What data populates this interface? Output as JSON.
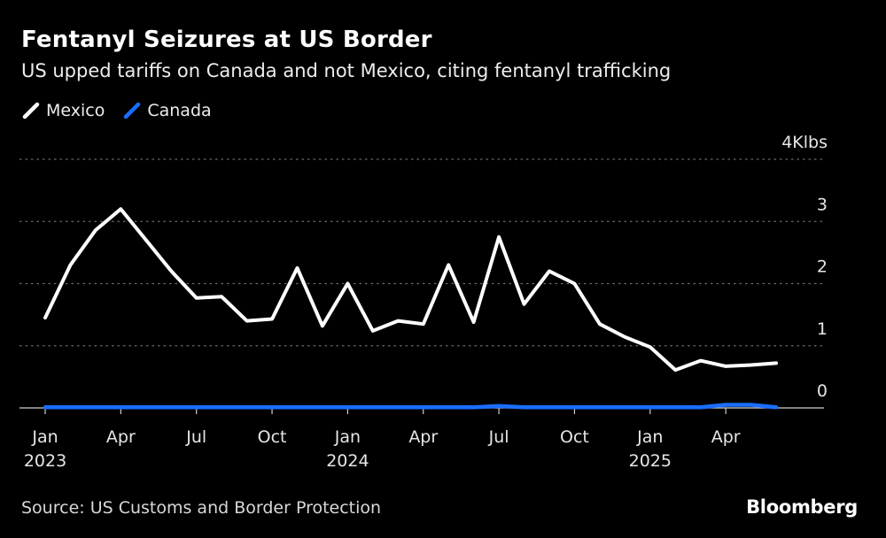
{
  "title": "Fentanyl Seizures at US Border",
  "subtitle": "US upped tariffs on Canada and not Mexico, citing fentanyl trafficking",
  "source": "Source: US Customs and Border Protection",
  "brand": "Bloomberg",
  "colors": {
    "mexico": "#ffffff",
    "canada": "#1a6eff",
    "grid": "#6a6a6a",
    "background": "#000000"
  },
  "chart_data": {
    "type": "line",
    "title": "Fentanyl Seizures at US Border",
    "subtitle": "US upped tariffs on Canada and not Mexico, citing fentanyl trafficking",
    "ylabel": "Klbs",
    "ylim": [
      0,
      4
    ],
    "grid": true,
    "legend_position": "top-left",
    "x": [
      "2023-01",
      "2023-02",
      "2023-03",
      "2023-04",
      "2023-05",
      "2023-06",
      "2023-07",
      "2023-08",
      "2023-09",
      "2023-10",
      "2023-11",
      "2023-12",
      "2024-01",
      "2024-02",
      "2024-03",
      "2024-04",
      "2024-05",
      "2024-06",
      "2024-07",
      "2024-08",
      "2024-09",
      "2024-10",
      "2024-11",
      "2024-12",
      "2025-01",
      "2025-02",
      "2025-03",
      "2025-04",
      "2025-05",
      "2025-06"
    ],
    "x_tick_labels": [
      {
        "index": 0,
        "month": "Jan",
        "year": "2023"
      },
      {
        "index": 3,
        "month": "Apr",
        "year": ""
      },
      {
        "index": 6,
        "month": "Jul",
        "year": ""
      },
      {
        "index": 9,
        "month": "Oct",
        "year": ""
      },
      {
        "index": 12,
        "month": "Jan",
        "year": "2024"
      },
      {
        "index": 15,
        "month": "Apr",
        "year": ""
      },
      {
        "index": 18,
        "month": "Jul",
        "year": ""
      },
      {
        "index": 21,
        "month": "Oct",
        "year": ""
      },
      {
        "index": 24,
        "month": "Jan",
        "year": "2025"
      },
      {
        "index": 27,
        "month": "Apr",
        "year": ""
      }
    ],
    "y_ticks": [
      {
        "value": 4,
        "label": "4Klbs"
      },
      {
        "value": 3,
        "label": "3"
      },
      {
        "value": 2,
        "label": "2"
      },
      {
        "value": 1,
        "label": "1"
      },
      {
        "value": 0,
        "label": "0"
      }
    ],
    "series": [
      {
        "name": "Mexico",
        "color": "#ffffff",
        "values": [
          1.45,
          2.3,
          2.86,
          3.2,
          2.7,
          2.2,
          1.77,
          1.79,
          1.4,
          1.43,
          2.25,
          1.32,
          2.0,
          1.24,
          1.4,
          1.35,
          2.3,
          1.38,
          2.75,
          1.67,
          2.2,
          2.0,
          1.35,
          1.14,
          0.98,
          0.61,
          0.76,
          0.67,
          0.69,
          0.72
        ]
      },
      {
        "name": "Canada",
        "color": "#1a6eff",
        "values": [
          0.01,
          0.01,
          0.01,
          0.01,
          0.01,
          0.01,
          0.01,
          0.01,
          0.01,
          0.01,
          0.01,
          0.01,
          0.01,
          0.01,
          0.01,
          0.01,
          0.01,
          0.01,
          0.03,
          0.01,
          0.01,
          0.01,
          0.01,
          0.01,
          0.01,
          0.01,
          0.01,
          0.05,
          0.05,
          0.01
        ]
      }
    ]
  }
}
